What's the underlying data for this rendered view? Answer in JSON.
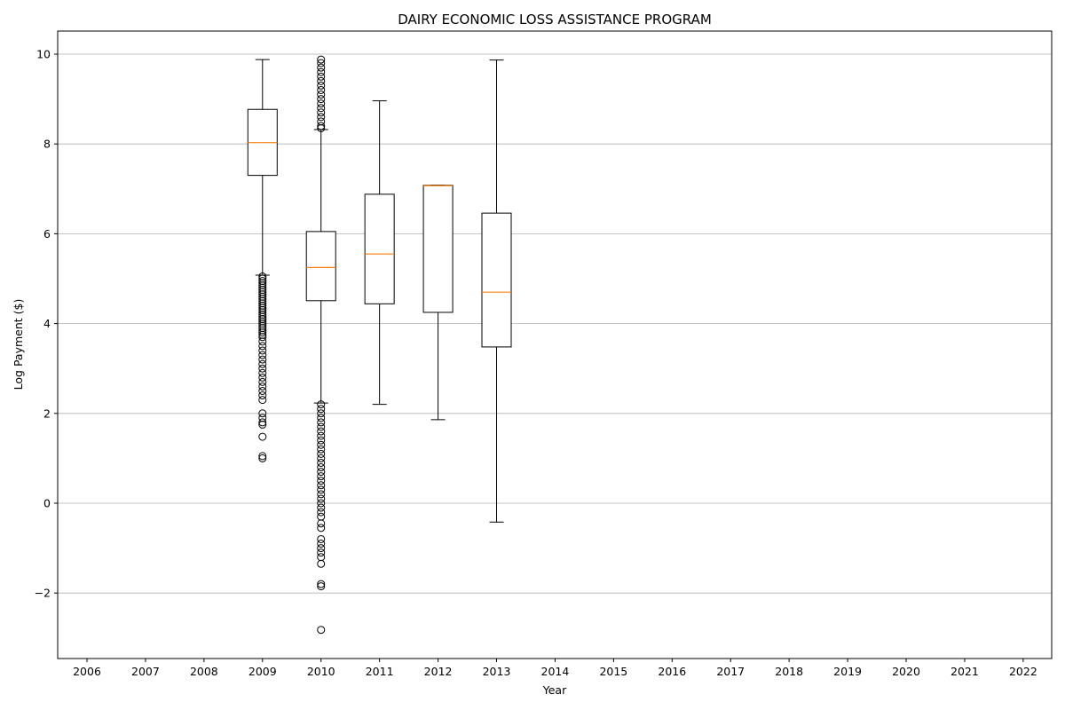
{
  "chart_data": {
    "type": "box",
    "title": "DAIRY ECONOMIC LOSS ASSISTANCE PROGRAM",
    "xlabel": "Year",
    "ylabel": "Log Payment ($)",
    "ylim": [
      -3.5,
      10.5
    ],
    "yticks": [
      -2,
      0,
      2,
      4,
      6,
      8,
      10
    ],
    "categories": [
      "2006",
      "2007",
      "2008",
      "2009",
      "2010",
      "2011",
      "2012",
      "2013",
      "2014",
      "2015",
      "2016",
      "2017",
      "2018",
      "2019",
      "2020",
      "2021",
      "2022"
    ],
    "grid": "horizontal",
    "colors": {
      "box": "#000000",
      "median": "#ff7f0e",
      "grid": "#b0b0b0"
    },
    "boxes": [
      {
        "year": "2009",
        "whisker_low": 5.08,
        "q1": 7.3,
        "median": 8.03,
        "q3": 8.77,
        "whisker_high": 9.88,
        "outliers": [
          5.05,
          5.0,
          4.95,
          4.9,
          4.85,
          4.8,
          4.75,
          4.7,
          4.65,
          4.6,
          4.55,
          4.5,
          4.45,
          4.4,
          4.35,
          4.3,
          4.25,
          4.2,
          4.15,
          4.1,
          4.05,
          4.0,
          3.95,
          3.9,
          3.85,
          3.8,
          3.75,
          3.7,
          3.6,
          3.5,
          3.4,
          3.3,
          3.2,
          3.1,
          3.0,
          2.9,
          2.8,
          2.7,
          2.6,
          2.5,
          2.4,
          2.3,
          2.0,
          1.9,
          1.8,
          1.75,
          1.48,
          1.05,
          1.0
        ]
      },
      {
        "year": "2010",
        "whisker_low": 2.23,
        "q1": 4.51,
        "median": 5.25,
        "q3": 6.05,
        "whisker_high": 8.32,
        "outliers": [
          9.88,
          9.8,
          9.7,
          9.6,
          9.5,
          9.4,
          9.3,
          9.2,
          9.1,
          9.0,
          8.9,
          8.8,
          8.7,
          8.6,
          8.5,
          8.4,
          8.35,
          2.2,
          2.1,
          2.0,
          1.9,
          1.8,
          1.7,
          1.6,
          1.5,
          1.4,
          1.3,
          1.2,
          1.1,
          1.0,
          0.9,
          0.8,
          0.7,
          0.6,
          0.5,
          0.4,
          0.3,
          0.2,
          0.1,
          0.0,
          -0.1,
          -0.2,
          -0.3,
          -0.45,
          -0.55,
          -0.8,
          -0.9,
          -1.0,
          -1.1,
          -1.2,
          -1.35,
          -1.8,
          -1.85,
          -2.82
        ]
      },
      {
        "year": "2011",
        "whisker_low": 2.2,
        "q1": 4.44,
        "median": 5.55,
        "q3": 6.88,
        "whisker_high": 8.96,
        "outliers": []
      },
      {
        "year": "2012",
        "whisker_low": 1.86,
        "q1": 4.25,
        "median": 7.07,
        "q3": 7.08,
        "whisker_high": 7.08,
        "outliers": []
      },
      {
        "year": "2013",
        "whisker_low": -0.42,
        "q1": 3.48,
        "median": 4.7,
        "q3": 6.46,
        "whisker_high": 9.87,
        "outliers": []
      }
    ]
  }
}
